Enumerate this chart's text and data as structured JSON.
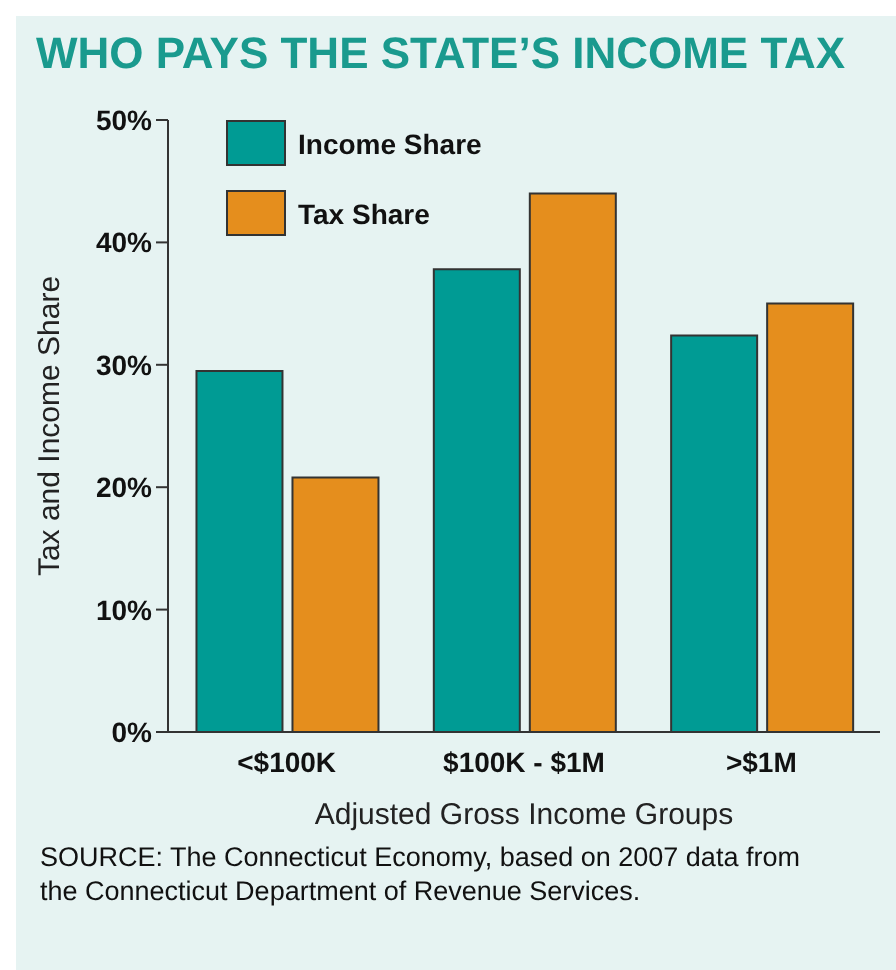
{
  "chart_data": {
    "type": "bar",
    "title": "WHO PAYS THE STATE’S INCOME TAX",
    "xlabel": "Adjusted Gross Income Groups",
    "ylabel": "Tax and Income Share",
    "categories": [
      "<$100K",
      "$100K - $1M",
      ">$1M"
    ],
    "series": [
      {
        "name": "Income Share",
        "color": "#009b94",
        "values": [
          29.5,
          37.8,
          32.4
        ]
      },
      {
        "name": "Tax Share",
        "color": "#e58e1d",
        "values": [
          20.8,
          44.0,
          35.0
        ]
      }
    ],
    "ylim": [
      0,
      50
    ],
    "yticks": [
      {
        "value": 0,
        "label": "0%"
      },
      {
        "value": 10,
        "label": "10%"
      },
      {
        "value": 20,
        "label": "20%"
      },
      {
        "value": 30,
        "label": "30%"
      },
      {
        "value": 40,
        "label": "40%"
      },
      {
        "value": 50,
        "label": "50%"
      }
    ],
    "grid": false,
    "legend": "top left",
    "annotations": [
      "SOURCE:  The Connecticut Economy, based on 2007 data from the Connecticut Department of Revenue Services."
    ]
  }
}
